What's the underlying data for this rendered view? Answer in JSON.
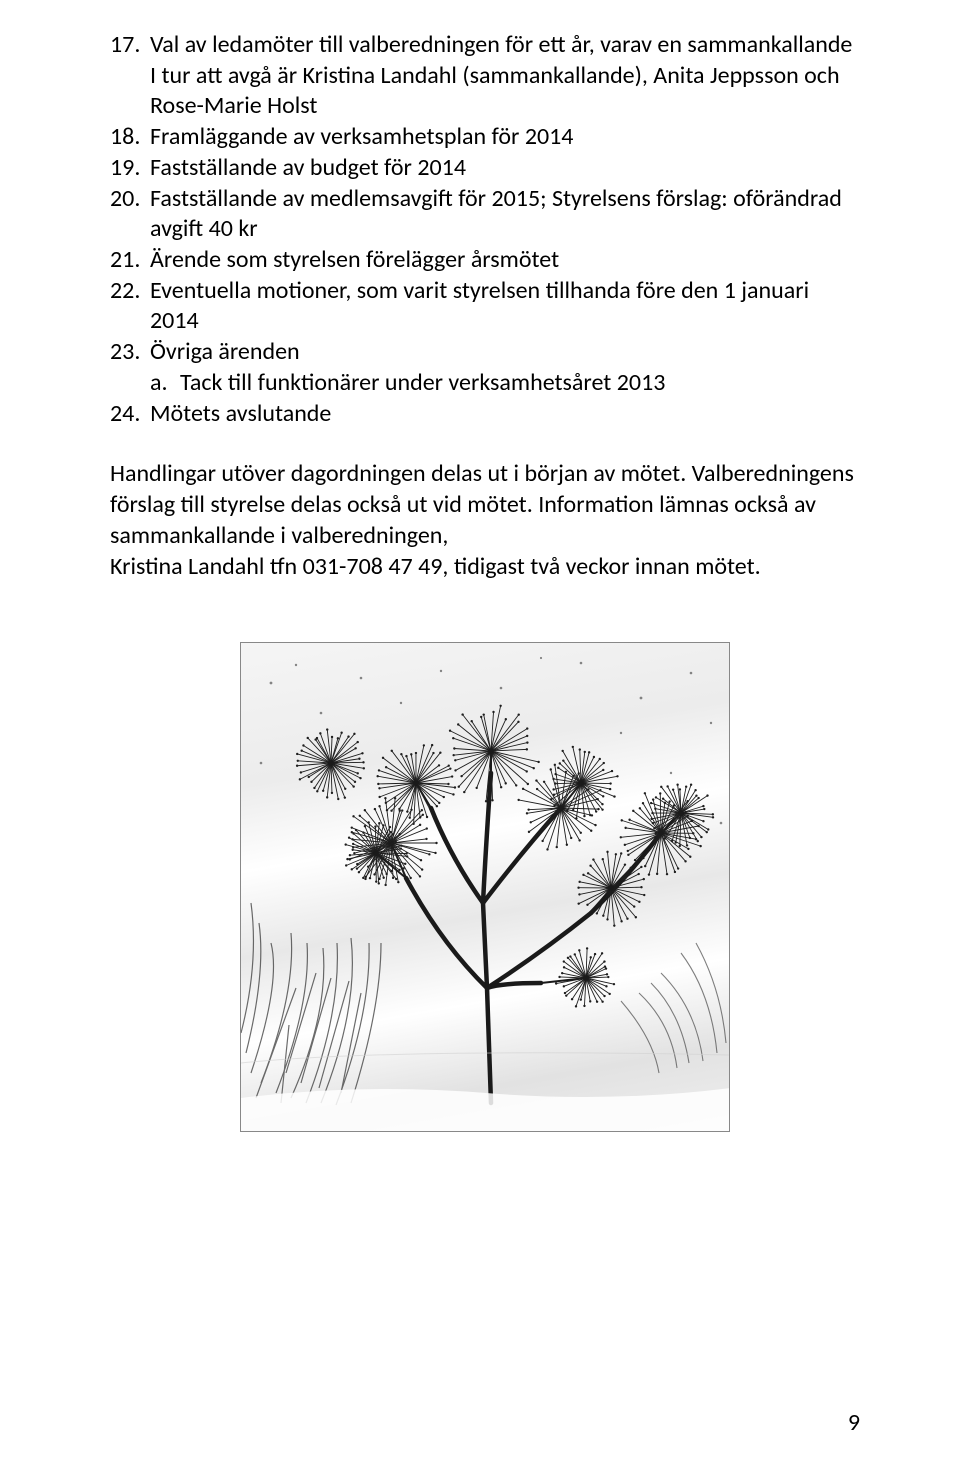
{
  "items": [
    {
      "n": "17.",
      "text": "Val av ledamöter till valberedningen för ett år, varav en sammankallande",
      "extra": "I tur att avgå är Kristina Landahl (sammankallande), Anita Jeppsson och Rose-Marie Holst"
    },
    {
      "n": "18.",
      "text": "Framläggande av verksamhetsplan för 2014"
    },
    {
      "n": "19.",
      "text": "Fastställande av budget för 2014"
    },
    {
      "n": "20.",
      "text": "Fastställande av medlemsavgift för 2015; Styrelsens förslag: oförändrad avgift 40 kr"
    },
    {
      "n": "21.",
      "text": "Ärende som styrelsen förelägger årsmötet"
    },
    {
      "n": "22.",
      "text": "Eventuella motioner, som varit styrelsen tillhanda före den 1 januari 2014"
    },
    {
      "n": "23.",
      "text": "Övriga ärenden",
      "sub": [
        {
          "n": "a.",
          "text": "Tack till funktionärer under verksamhetsåret 2013"
        }
      ]
    },
    {
      "n": "24.",
      "text": "Mötets avslutande"
    }
  ],
  "after": "Handlingar utöver dagordningen delas ut i början av mötet. Valberedningens förslag till styrelse delas också ut vid mötet. Information lämnas också av sammankallande i valberedningen,",
  "after2": "Kristina Landahl tfn 031-708 47 49, tidigast två veckor innan mötet.",
  "pageNum": "9"
}
